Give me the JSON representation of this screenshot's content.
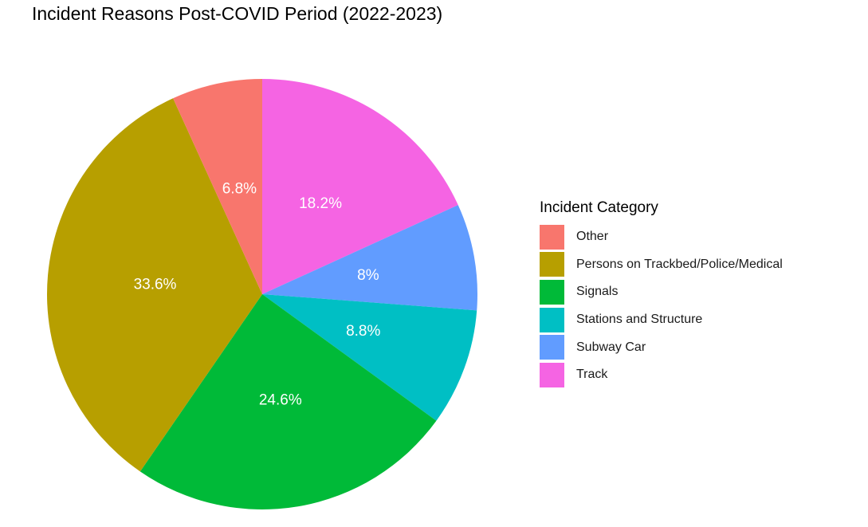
{
  "chart_data": {
    "type": "pie",
    "title": "Incident Reasons Post-COVID Period (2022-2023)",
    "legend_title": "Incident Category",
    "legend_position": "right",
    "categories": [
      "Other",
      "Persons on Trackbed/Police/Medical",
      "Signals",
      "Stations and Structure",
      "Subway Car",
      "Track"
    ],
    "values": [
      6.8,
      33.6,
      24.6,
      8.8,
      8,
      18.2
    ],
    "labels": [
      "6.8%",
      "33.6%",
      "24.6%",
      "8.8%",
      "8%",
      "18.2%"
    ],
    "colors": [
      "#F8766D",
      "#B79F00",
      "#00BA38",
      "#00BFC4",
      "#619CFF",
      "#F564E3"
    ],
    "label_color": "#FFFFFF"
  }
}
